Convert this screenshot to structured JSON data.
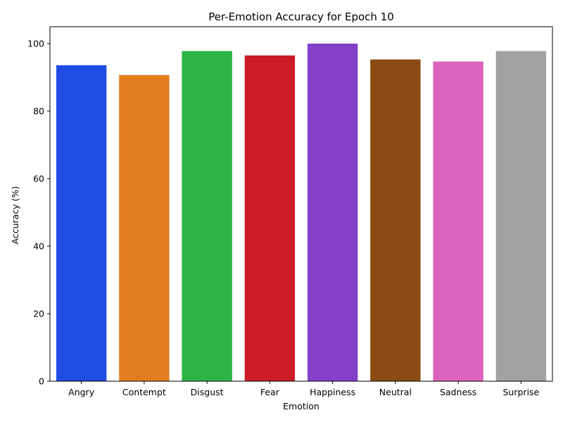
{
  "chart_data": {
    "type": "bar",
    "title": "Per-Emotion Accuracy for Epoch 10",
    "xlabel": "Emotion",
    "ylabel": "Accuracy (%)",
    "categories": [
      "Angry",
      "Contempt",
      "Disgust",
      "Fear",
      "Happiness",
      "Neutral",
      "Sadness",
      "Surprise"
    ],
    "values": [
      93.6,
      90.7,
      97.8,
      96.5,
      100.0,
      95.3,
      94.7,
      97.8
    ],
    "colors": [
      "#1f4de3",
      "#e27d1f",
      "#2cb545",
      "#cc1c27",
      "#8540c9",
      "#8b4b12",
      "#dc63bd",
      "#a2a2a2"
    ],
    "ylim": [
      0,
      105
    ],
    "yticks": [
      0,
      20,
      40,
      60,
      80,
      100
    ],
    "grid": false,
    "legend": "none"
  }
}
